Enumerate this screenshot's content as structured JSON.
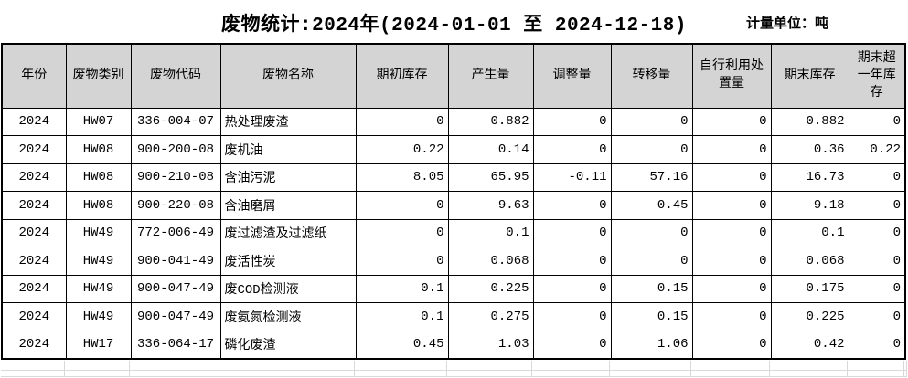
{
  "title": "废物统计:2024年(2024-01-01 至 2024-12-18)",
  "unit_label": "计量单位：吨",
  "colors": {
    "header_background": "#d4d4d4",
    "table_border": "#000000",
    "ghost_gridline": "#d9d9d9",
    "text": "#000000",
    "page_background": "#ffffff"
  },
  "table": {
    "columns": [
      {
        "key": "year",
        "label": "年份"
      },
      {
        "key": "waste-category",
        "label": "废物类别"
      },
      {
        "key": "waste-code",
        "label": "废物代码"
      },
      {
        "key": "waste-name",
        "label": "废物名称"
      },
      {
        "key": "opening-stock",
        "label": "期初库存"
      },
      {
        "key": "generated-amount",
        "label": "产生量"
      },
      {
        "key": "adjustment-amount",
        "label": "调整量"
      },
      {
        "key": "transferred-amount",
        "label": "转移量"
      },
      {
        "key": "self-utilized-disposed-amount",
        "label": "自行利用处置量"
      },
      {
        "key": "ending-stock",
        "label": "期末库存"
      },
      {
        "key": "ending-stock-over-one-year",
        "label": "期末超一年库存"
      }
    ],
    "rows": [
      [
        "2024",
        "HW07",
        "336-004-07",
        "热处理废渣",
        "0",
        "0.882",
        "0",
        "0",
        "0",
        "0.882",
        "0"
      ],
      [
        "2024",
        "HW08",
        "900-200-08",
        "废机油",
        "0.22",
        "0.14",
        "0",
        "0",
        "0",
        "0.36",
        "0.22"
      ],
      [
        "2024",
        "HW08",
        "900-210-08",
        "含油污泥",
        "8.05",
        "65.95",
        "-0.11",
        "57.16",
        "0",
        "16.73",
        "0"
      ],
      [
        "2024",
        "HW08",
        "900-220-08",
        "含油磨屑",
        "0",
        "9.63",
        "0",
        "0.45",
        "0",
        "9.18",
        "0"
      ],
      [
        "2024",
        "HW49",
        "772-006-49",
        "废过滤渣及过滤纸",
        "0",
        "0.1",
        "0",
        "0",
        "0",
        "0.1",
        "0"
      ],
      [
        "2024",
        "HW49",
        "900-041-49",
        "废活性炭",
        "0",
        "0.068",
        "0",
        "0",
        "0",
        "0.068",
        "0"
      ],
      [
        "2024",
        "HW49",
        "900-047-49",
        "废COD检测液",
        "0.1",
        "0.225",
        "0",
        "0.15",
        "0",
        "0.175",
        "0"
      ],
      [
        "2024",
        "HW49",
        "900-047-49",
        "废氨氮检测液",
        "0.1",
        "0.275",
        "0",
        "0.15",
        "0",
        "0.225",
        "0"
      ],
      [
        "2024",
        "HW17",
        "336-064-17",
        "磷化废渣",
        "0.45",
        "1.03",
        "0",
        "1.06",
        "0",
        "0.42",
        "0"
      ]
    ]
  }
}
